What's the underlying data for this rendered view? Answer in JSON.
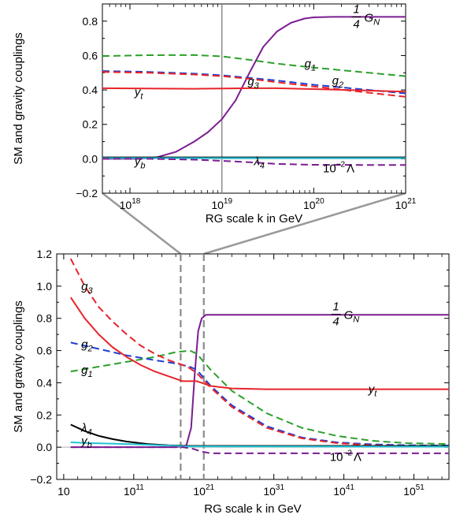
{
  "chart_data": [
    {
      "type": "line",
      "xlabel": "RG scale k in GeV",
      "ylabel": "SM and gravity couplings",
      "x_scale": "log",
      "xlim": [
        17.7,
        21.0
      ],
      "ylim": [
        -0.2,
        0.9
      ],
      "x_ticks": [
        {
          "v": 18,
          "base": "10",
          "exp": "18"
        },
        {
          "v": 19,
          "base": "10",
          "exp": "19"
        },
        {
          "v": 20,
          "base": "10",
          "exp": "20"
        },
        {
          "v": 21,
          "base": "10",
          "exp": "21"
        }
      ],
      "y_ticks": [
        {
          "v": -0.2,
          "label": "−0.2"
        },
        {
          "v": 0.0,
          "label": "0.0"
        },
        {
          "v": 0.2,
          "label": "0.2"
        },
        {
          "v": 0.4,
          "label": "0.4"
        },
        {
          "v": 0.6,
          "label": "0.6"
        },
        {
          "v": 0.8,
          "label": "0.8"
        }
      ],
      "vlines": [
        19.0
      ],
      "series": [
        {
          "name": "1/4 G_N",
          "color": "#7b1d91",
          "dash": "solid",
          "x": [
            17.7,
            18.1,
            18.3,
            18.5,
            18.7,
            18.85,
            19.0,
            19.15,
            19.3,
            19.45,
            19.6,
            19.75,
            19.9,
            20.0,
            20.2,
            20.5,
            21.0
          ],
          "y": [
            0.0,
            0.0,
            0.01,
            0.04,
            0.1,
            0.155,
            0.23,
            0.34,
            0.5,
            0.65,
            0.74,
            0.79,
            0.815,
            0.822,
            0.825,
            0.825,
            0.825
          ]
        },
        {
          "name": "g_1",
          "color": "#2ca02c",
          "dash": "dashed",
          "x": [
            17.7,
            18.2,
            18.7,
            19.0,
            19.3,
            19.6,
            20.0,
            20.5,
            21.0
          ],
          "y": [
            0.597,
            0.602,
            0.603,
            0.595,
            0.575,
            0.553,
            0.53,
            0.505,
            0.48
          ]
        },
        {
          "name": "g_2",
          "color": "#1f3fd4",
          "dash": "dashed",
          "x": [
            17.7,
            18.2,
            18.7,
            19.0,
            19.3,
            19.6,
            20.0,
            20.5,
            21.0
          ],
          "y": [
            0.51,
            0.505,
            0.495,
            0.485,
            0.47,
            0.455,
            0.43,
            0.405,
            0.38
          ]
        },
        {
          "name": "g_3",
          "color": "#e8242a",
          "dash": "dashed",
          "x": [
            17.7,
            18.2,
            18.7,
            19.0,
            19.3,
            19.6,
            20.0,
            20.5,
            21.0
          ],
          "y": [
            0.505,
            0.5,
            0.49,
            0.48,
            0.465,
            0.445,
            0.42,
            0.39,
            0.36
          ]
        },
        {
          "name": "y_t",
          "color": "#e8242a",
          "dash": "solid",
          "x": [
            17.7,
            18.2,
            18.7,
            19.0,
            19.3,
            19.6,
            20.0,
            20.5,
            21.0
          ],
          "y": [
            0.41,
            0.408,
            0.407,
            0.408,
            0.41,
            0.41,
            0.405,
            0.398,
            0.39
          ]
        },
        {
          "name": "λ_4",
          "color": "#000000",
          "dash": "solid",
          "x": [
            17.7,
            21.0
          ],
          "y": [
            0.008,
            0.008
          ]
        },
        {
          "name": "y_b",
          "color": "#22c4d6",
          "dash": "solid",
          "x": [
            17.7,
            21.0
          ],
          "y": [
            0.004,
            0.004
          ]
        },
        {
          "name": "10^-2 Λ",
          "color": "#7b1d91",
          "dash": "dashed",
          "x": [
            17.7,
            18.2,
            18.7,
            19.0,
            19.3,
            19.6,
            20.0,
            20.5,
            21.0
          ],
          "y": [
            0.0,
            0.0,
            -0.005,
            -0.012,
            -0.02,
            -0.03,
            -0.035,
            -0.036,
            -0.036
          ]
        }
      ],
      "annotations": [
        {
          "text": "G",
          "sub": "N",
          "frac": "1/4",
          "x": 20.55,
          "y": 0.82
        },
        {
          "text": "g",
          "sub": "1",
          "x": 19.9,
          "y": 0.555
        },
        {
          "text": "g",
          "sub": "2",
          "x": 20.2,
          "y": 0.455
        },
        {
          "text": "g",
          "sub": "3",
          "x": 19.28,
          "y": 0.45
        },
        {
          "text": "y",
          "sub": "t",
          "x": 18.05,
          "y": 0.39
        },
        {
          "text": "y",
          "sub": "b",
          "x": 18.05,
          "y": -0.015
        },
        {
          "text": "λ",
          "sub": "4",
          "x": 19.35,
          "y": -0.015
        },
        {
          "text": "10",
          "sup": "−2",
          "tail": "Λ",
          "x": 20.1,
          "y": -0.055
        }
      ]
    },
    {
      "type": "line",
      "xlabel": "RG scale k in GeV",
      "ylabel": "SM and gravity couplings",
      "x_scale": "log",
      "xlim": [
        0,
        56
      ],
      "ylim": [
        -0.2,
        1.2
      ],
      "x_ticks": [
        {
          "v": 1,
          "base": "10",
          "exp": ""
        },
        {
          "v": 11,
          "base": "10",
          "exp": "11"
        },
        {
          "v": 21,
          "base": "10",
          "exp": "21"
        },
        {
          "v": 31,
          "base": "10",
          "exp": "31"
        },
        {
          "v": 41,
          "base": "10",
          "exp": "41"
        },
        {
          "v": 51,
          "base": "10",
          "exp": "51"
        }
      ],
      "y_ticks": [
        {
          "v": -0.2,
          "label": "−0.2"
        },
        {
          "v": 0.0,
          "label": "0.0"
        },
        {
          "v": 0.2,
          "label": "0.2"
        },
        {
          "v": 0.4,
          "label": "0.4"
        },
        {
          "v": 0.6,
          "label": "0.6"
        },
        {
          "v": 0.8,
          "label": "0.8"
        },
        {
          "v": 1.0,
          "label": "1.0"
        },
        {
          "v": 1.2,
          "label": "1.2"
        }
      ],
      "vlines": [
        17.7,
        21.0
      ],
      "series": [
        {
          "name": "1/4 G_N",
          "color": "#7b1d91",
          "dash": "solid",
          "x": [
            2,
            10,
            17,
            18.5,
            19.2,
            19.7,
            20.2,
            20.7,
            21.3,
            56
          ],
          "y": [
            0,
            0,
            0,
            0.01,
            0.12,
            0.45,
            0.72,
            0.8,
            0.822,
            0.822
          ]
        },
        {
          "name": "g_1",
          "color": "#2ca02c",
          "dash": "dashed",
          "x": [
            2,
            6,
            10,
            14,
            17,
            19,
            20,
            22,
            25,
            30,
            35,
            40,
            45,
            50,
            56
          ],
          "y": [
            0.47,
            0.5,
            0.53,
            0.56,
            0.59,
            0.6,
            0.58,
            0.48,
            0.35,
            0.21,
            0.12,
            0.07,
            0.04,
            0.025,
            0.02
          ]
        },
        {
          "name": "g_2",
          "color": "#1f3fd4",
          "dash": "dashed",
          "x": [
            2,
            6,
            10,
            14,
            17,
            19,
            20,
            22,
            25,
            30,
            35,
            40,
            45,
            50,
            56
          ],
          "y": [
            0.65,
            0.61,
            0.57,
            0.54,
            0.52,
            0.5,
            0.48,
            0.38,
            0.26,
            0.13,
            0.06,
            0.03,
            0.018,
            0.012,
            0.01
          ]
        },
        {
          "name": "g_3",
          "color": "#e8242a",
          "dash": "dashed",
          "x": [
            2,
            4,
            6,
            8,
            10,
            12,
            14,
            16,
            18,
            19,
            20,
            22,
            25,
            30,
            35,
            40,
            45,
            50,
            56
          ],
          "y": [
            1.17,
            1.0,
            0.87,
            0.78,
            0.7,
            0.63,
            0.58,
            0.54,
            0.51,
            0.49,
            0.46,
            0.37,
            0.25,
            0.12,
            0.055,
            0.025,
            0.012,
            0.008,
            0.005
          ]
        },
        {
          "name": "y_t",
          "color": "#e8242a",
          "dash": "solid",
          "x": [
            2,
            4,
            6,
            8,
            10,
            12,
            14,
            16,
            18,
            20,
            22,
            25,
            30,
            35,
            45,
            56
          ],
          "y": [
            0.93,
            0.8,
            0.7,
            0.62,
            0.56,
            0.51,
            0.47,
            0.44,
            0.41,
            0.41,
            0.38,
            0.365,
            0.36,
            0.36,
            0.36,
            0.36
          ]
        },
        {
          "name": "λ_4",
          "color": "#000000",
          "dash": "solid",
          "x": [
            2,
            4,
            6,
            8,
            10,
            13,
            16,
            19,
            56
          ],
          "y": [
            0.14,
            0.1,
            0.07,
            0.05,
            0.035,
            0.02,
            0.012,
            0.008,
            0.008
          ]
        },
        {
          "name": "y_b",
          "color": "#22c4d6",
          "dash": "solid",
          "x": [
            2,
            5,
            10,
            15,
            19,
            56
          ],
          "y": [
            0.03,
            0.025,
            0.02,
            0.012,
            0.005,
            0.003
          ]
        },
        {
          "name": "10^-2 Λ",
          "color": "#7b1d91",
          "dash": "dashed",
          "x": [
            2,
            10,
            18,
            19.5,
            20.5,
            22,
            56
          ],
          "y": [
            0,
            0,
            0,
            -0.01,
            -0.025,
            -0.038,
            -0.038
          ]
        }
      ],
      "annotations": [
        {
          "text": "G",
          "sub": "N",
          "frac": "1/4",
          "x": 41,
          "y": 0.82
        },
        {
          "text": "g",
          "sub": "3",
          "x": 3.5,
          "y": 1.0
        },
        {
          "text": "g",
          "sub": "2",
          "x": 3.5,
          "y": 0.64
        },
        {
          "text": "g",
          "sub": "1",
          "x": 3.5,
          "y": 0.48
        },
        {
          "text": "y",
          "sub": "t",
          "x": 44.5,
          "y": 0.36
        },
        {
          "text": "λ",
          "sub": "4",
          "x": 3.5,
          "y": 0.12
        },
        {
          "text": "y",
          "sub": "b",
          "x": 3.5,
          "y": 0.04
        },
        {
          "text": "10",
          "sup": "−2",
          "tail": "Λ",
          "x": 39,
          "y": -0.06
        }
      ]
    }
  ]
}
